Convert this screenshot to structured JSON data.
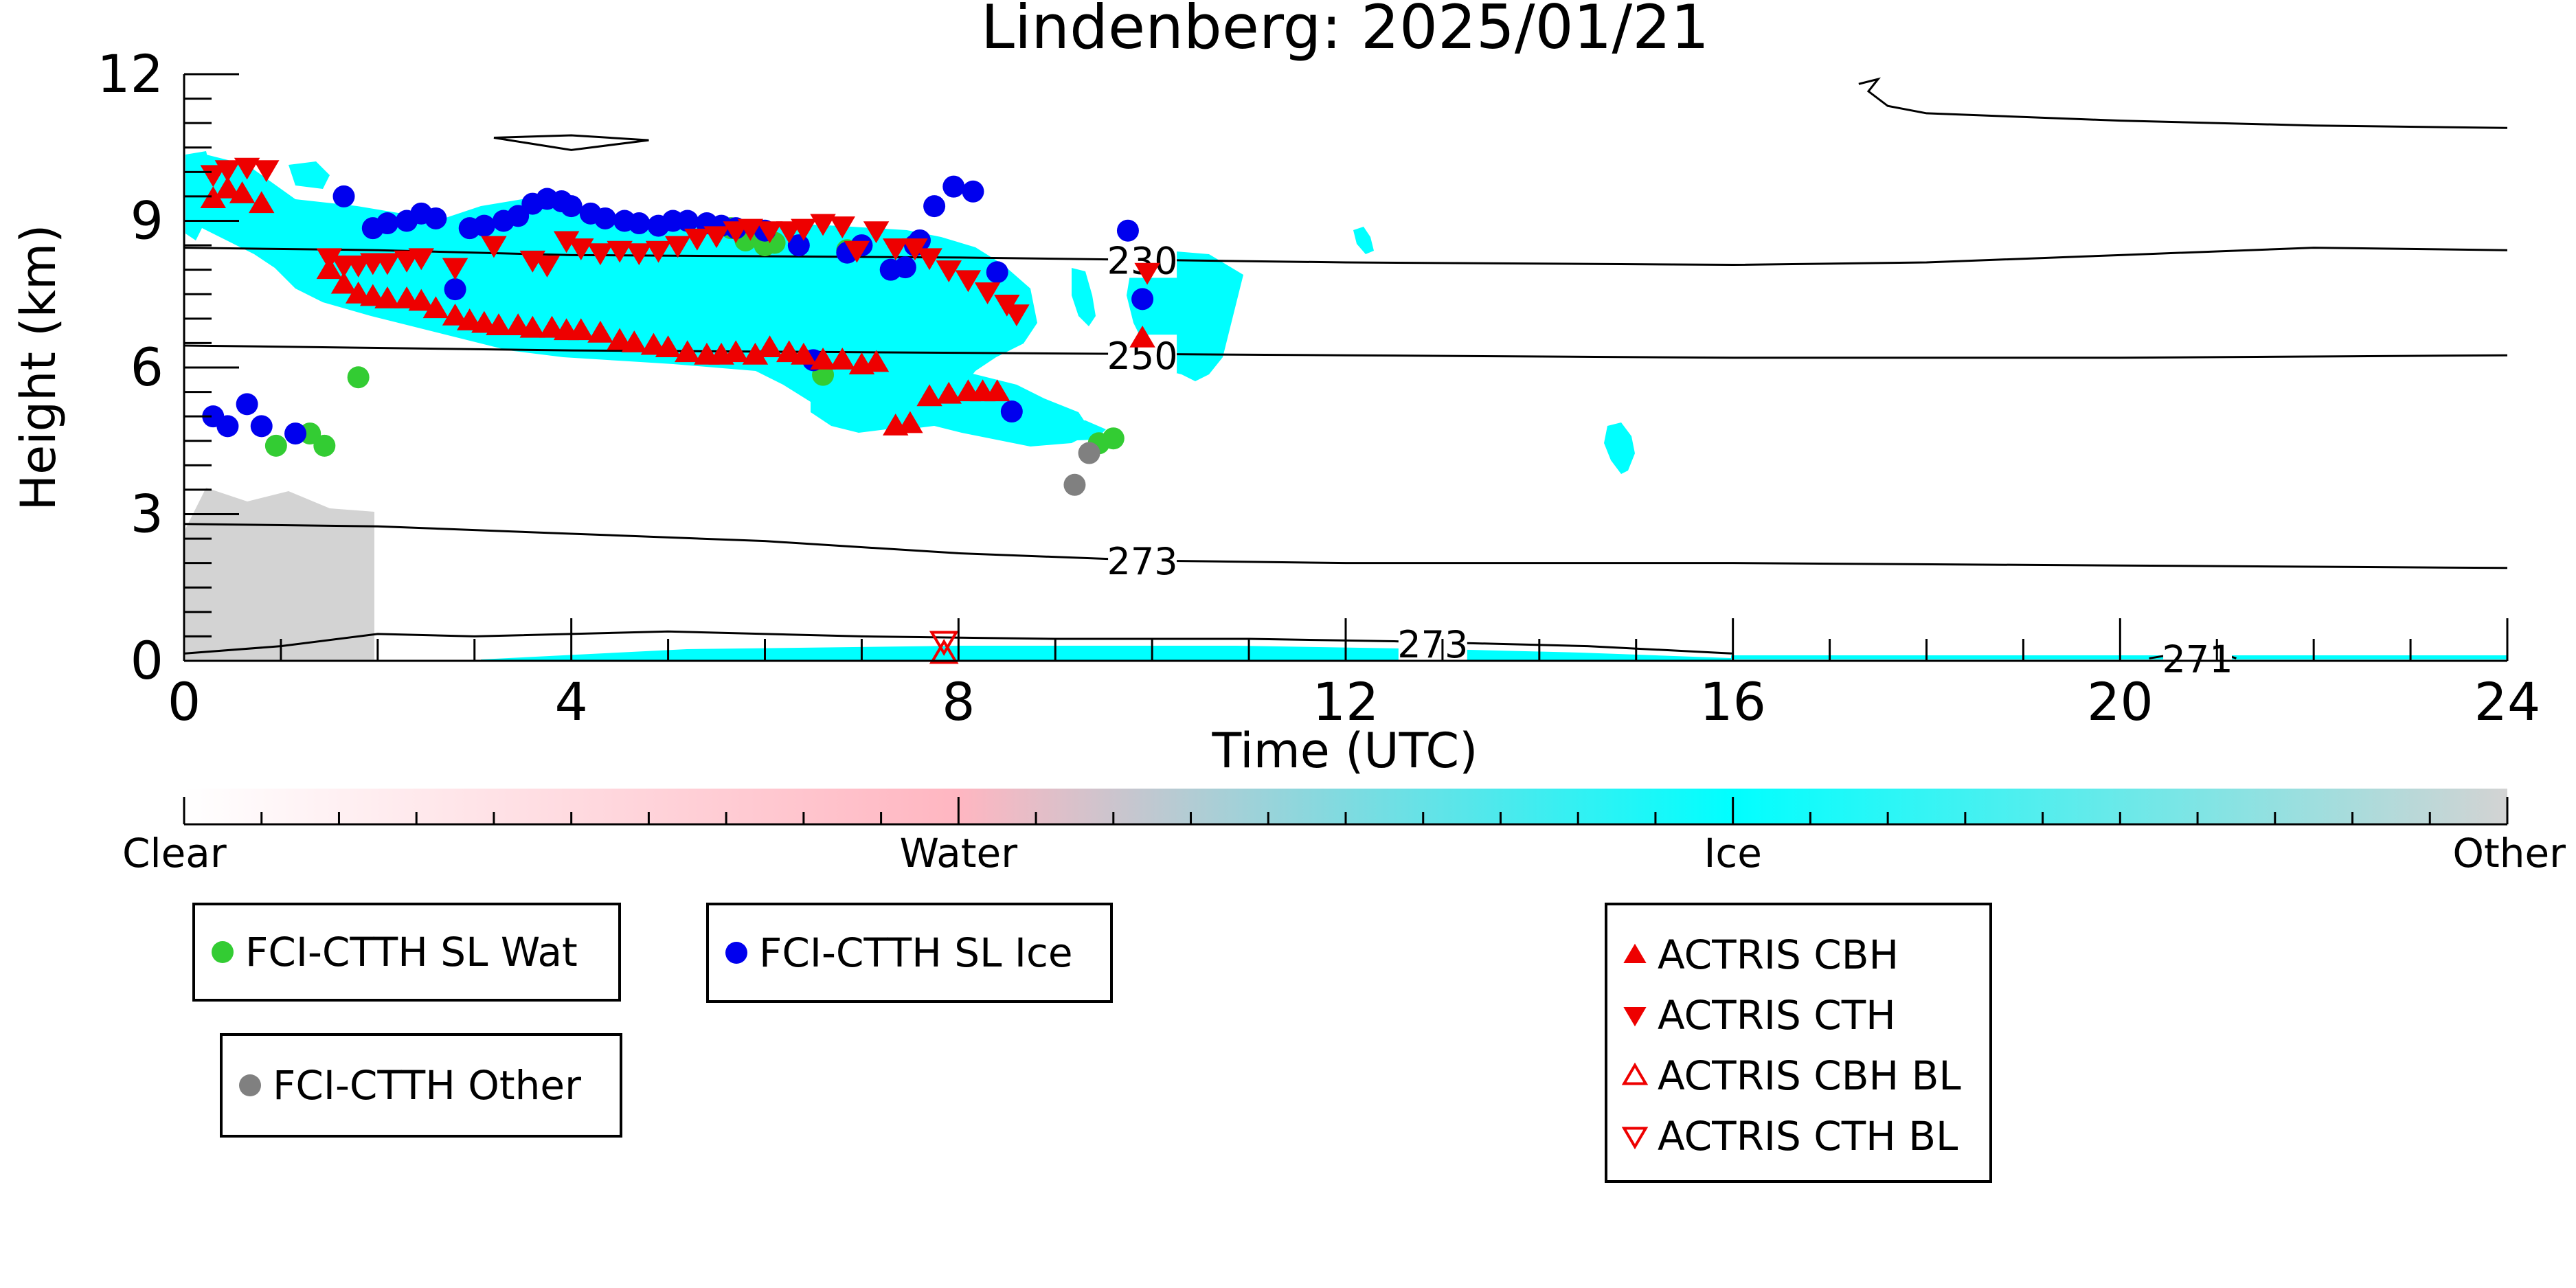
{
  "chart_data": {
    "type": "scatter",
    "title": "Lindenberg: 2025/01/21",
    "xlabel": "Time (UTC)",
    "ylabel": "Height (km)",
    "xlim": [
      0,
      24
    ],
    "ylim": [
      0,
      12
    ],
    "x_ticks": [
      0,
      4,
      8,
      12,
      16,
      20,
      24
    ],
    "y_ticks": [
      0,
      3,
      6,
      9,
      12
    ],
    "grid": false,
    "colorbar": {
      "labels": [
        "Clear",
        "Water",
        "Ice",
        "Other"
      ],
      "positions": [
        0,
        1,
        2,
        3
      ],
      "colors": [
        "#ffffff",
        "#ffb6c1",
        "#00ffff",
        "#d3d3d3"
      ]
    },
    "contours": [
      {
        "label": "230",
        "points": [
          [
            0,
            8.45
          ],
          [
            2,
            8.4
          ],
          [
            4,
            8.3
          ],
          [
            8,
            8.25
          ],
          [
            10,
            8.2
          ],
          [
            12,
            8.15
          ],
          [
            16,
            8.1
          ],
          [
            18,
            8.15
          ],
          [
            20,
            8.3
          ],
          [
            22,
            8.45
          ],
          [
            24,
            8.4
          ]
        ]
      },
      {
        "label": "250",
        "points": [
          [
            0,
            6.45
          ],
          [
            2,
            6.4
          ],
          [
            4,
            6.35
          ],
          [
            8,
            6.3
          ],
          [
            12,
            6.25
          ],
          [
            16,
            6.2
          ],
          [
            20,
            6.2
          ],
          [
            24,
            6.25
          ]
        ]
      },
      {
        "label": "273",
        "points": [
          [
            0,
            2.8
          ],
          [
            2,
            2.75
          ],
          [
            4,
            2.6
          ],
          [
            6,
            2.45
          ],
          [
            8,
            2.2
          ],
          [
            10,
            2.05
          ],
          [
            12,
            2.0
          ],
          [
            16,
            2.0
          ],
          [
            20,
            1.95
          ],
          [
            24,
            1.9
          ]
        ]
      },
      {
        "label": "273",
        "points": [
          [
            0,
            0.15
          ],
          [
            1,
            0.3
          ],
          [
            2,
            0.55
          ],
          [
            3,
            0.5
          ],
          [
            5,
            0.6
          ],
          [
            7,
            0.5
          ],
          [
            9,
            0.45
          ],
          [
            11,
            0.45
          ],
          [
            12.5,
            0.4
          ],
          [
            14.5,
            0.3
          ],
          [
            16,
            0.15
          ]
        ]
      },
      {
        "label": "271",
        "points": [
          [
            20.3,
            0.05
          ],
          [
            20.9,
            0.25
          ],
          [
            21.2,
            0.05
          ]
        ]
      },
      {
        "label": "",
        "points": [
          [
            17.3,
            11.8
          ],
          [
            17.5,
            11.9
          ],
          [
            17.4,
            11.65
          ],
          [
            17.6,
            11.35
          ],
          [
            18,
            11.2
          ],
          [
            20,
            11.05
          ],
          [
            22,
            10.95
          ],
          [
            24,
            10.9
          ]
        ]
      },
      {
        "label": "",
        "points": [
          [
            3.2,
            10.7
          ],
          [
            4,
            10.75
          ],
          [
            4.8,
            10.65
          ],
          [
            4,
            10.45
          ],
          [
            3.2,
            10.7
          ]
        ]
      }
    ],
    "series": [
      {
        "name": "FCI-CTTH SL Wat",
        "marker": "circle",
        "color": "#33cc33",
        "x": [
          0.95,
          1.3,
          1.45,
          1.8,
          5.65,
          5.8,
          6.0,
          6.1,
          6.6,
          6.85,
          9.45,
          9.6
        ],
        "y": [
          4.4,
          4.65,
          4.4,
          5.8,
          8.85,
          8.6,
          8.5,
          8.55,
          5.85,
          8.4,
          4.45,
          4.55
        ]
      },
      {
        "name": "FCI-CTTH SL Ice",
        "marker": "circle",
        "color": "#0000ee",
        "x": [
          0.3,
          0.45,
          0.65,
          0.8,
          1.15,
          1.65,
          1.95,
          2.1,
          2.3,
          2.45,
          2.6,
          2.8,
          2.95,
          3.1,
          3.3,
          3.45,
          3.6,
          3.75,
          3.9,
          4.0,
          4.2,
          4.35,
          4.55,
          4.7,
          4.9,
          5.05,
          5.2,
          5.4,
          5.55,
          5.7,
          6.0,
          6.35,
          6.5,
          6.85,
          7.0,
          7.3,
          7.45,
          7.55,
          7.6,
          7.75,
          7.95,
          8.15,
          8.4,
          8.55,
          9.75,
          9.9
        ],
        "y": [
          5.0,
          4.8,
          5.25,
          4.8,
          4.65,
          9.5,
          8.85,
          8.95,
          9.0,
          9.15,
          9.05,
          7.6,
          8.85,
          8.9,
          9.0,
          9.1,
          9.35,
          9.45,
          9.4,
          9.3,
          9.15,
          9.05,
          9.0,
          8.95,
          8.9,
          9.0,
          9.0,
          8.95,
          8.9,
          8.85,
          8.8,
          8.5,
          6.15,
          8.35,
          8.5,
          8.0,
          8.05,
          8.5,
          8.6,
          9.3,
          9.7,
          9.6,
          7.95,
          5.1,
          8.8,
          7.4
        ]
      },
      {
        "name": "FCI-CTTH Other",
        "marker": "circle",
        "color": "#808080",
        "x": [
          9.2,
          9.35
        ],
        "y": [
          3.6,
          4.25
        ]
      },
      {
        "name": "ACTRIS CBH",
        "marker": "triangle-up",
        "color": "#ee0000",
        "x": [
          0.3,
          0.45,
          0.6,
          0.8,
          1.5,
          1.65,
          1.8,
          1.95,
          2.1,
          2.3,
          2.45,
          2.6,
          2.8,
          2.95,
          3.1,
          3.25,
          3.45,
          3.6,
          3.8,
          3.95,
          4.1,
          4.3,
          4.5,
          4.65,
          4.85,
          5.0,
          5.2,
          5.4,
          5.55,
          5.7,
          5.9,
          6.05,
          6.25,
          6.4,
          6.6,
          6.8,
          7.0,
          7.15,
          7.35,
          7.5,
          7.7,
          7.9,
          8.1,
          8.25,
          8.4,
          9.9
        ],
        "y": [
          9.45,
          9.65,
          9.55,
          9.35,
          8.0,
          7.7,
          7.5,
          7.45,
          7.4,
          7.4,
          7.35,
          7.2,
          7.05,
          6.95,
          6.9,
          6.85,
          6.85,
          6.8,
          6.8,
          6.75,
          6.75,
          6.7,
          6.55,
          6.5,
          6.45,
          6.4,
          6.3,
          6.25,
          6.25,
          6.3,
          6.25,
          6.4,
          6.3,
          6.25,
          6.15,
          6.15,
          6.05,
          6.1,
          4.8,
          4.85,
          5.4,
          5.45,
          5.5,
          5.5,
          5.5,
          6.6
        ]
      },
      {
        "name": "ACTRIS CTH",
        "marker": "triangle-down",
        "color": "#ee0000",
        "x": [
          0.3,
          0.45,
          0.65,
          0.85,
          1.5,
          1.65,
          1.8,
          1.95,
          2.1,
          2.3,
          2.45,
          2.8,
          3.2,
          3.6,
          3.75,
          3.95,
          4.1,
          4.3,
          4.5,
          4.7,
          4.9,
          5.1,
          5.3,
          5.5,
          5.7,
          5.85,
          6.05,
          6.25,
          6.4,
          6.6,
          6.8,
          6.95,
          7.15,
          7.35,
          7.55,
          7.7,
          7.9,
          8.1,
          8.3,
          8.5,
          8.6,
          9.95
        ],
        "y": [
          9.95,
          10.05,
          10.1,
          10.05,
          8.25,
          8.1,
          8.1,
          8.15,
          8.15,
          8.2,
          8.25,
          8.05,
          8.5,
          8.2,
          8.1,
          8.6,
          8.45,
          8.35,
          8.4,
          8.35,
          8.4,
          8.5,
          8.65,
          8.7,
          8.8,
          8.85,
          8.8,
          8.8,
          8.85,
          8.95,
          8.9,
          8.4,
          8.8,
          8.45,
          8.45,
          8.25,
          8.0,
          7.8,
          7.55,
          7.3,
          7.1,
          7.95
        ]
      },
      {
        "name": "ACTRIS CBH BL",
        "marker": "triangle-up-open",
        "color": "#ee0000",
        "x": [
          7.85
        ],
        "y": [
          0.15
        ]
      },
      {
        "name": "ACTRIS CTH BL",
        "marker": "triangle-down-open",
        "color": "#ee0000",
        "x": [
          7.85
        ],
        "y": [
          0.4
        ]
      }
    ],
    "legend_placement": "below-plot, three boxes",
    "legend_groups": [
      [
        "FCI-CTTH SL Wat",
        "FCI-CTTH Other"
      ],
      [
        "FCI-CTTH SL Ice"
      ],
      [
        "ACTRIS CBH",
        "ACTRIS CTH",
        "ACTRIS CBH BL",
        "ACTRIS CTH BL"
      ]
    ]
  }
}
